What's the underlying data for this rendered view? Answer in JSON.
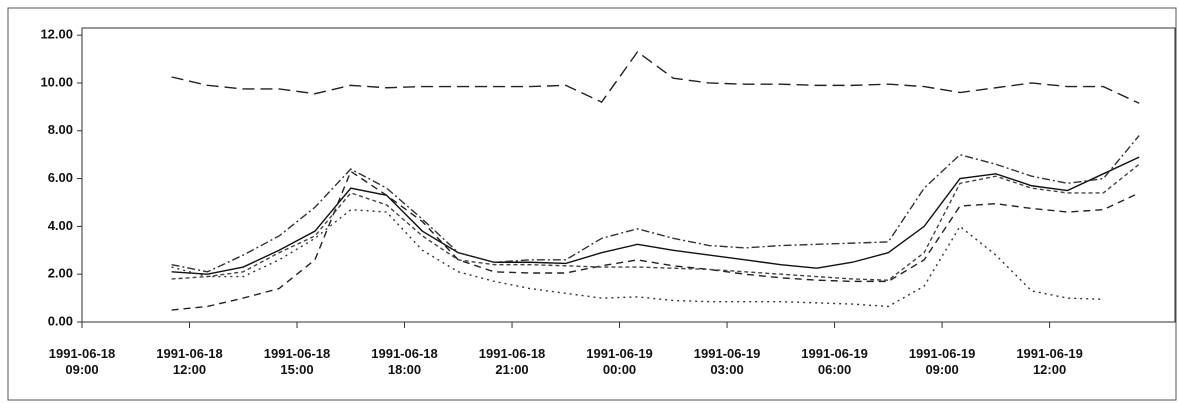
{
  "chart_data": {
    "type": "line",
    "x": [
      11.5,
      12.5,
      13.5,
      14.5,
      15.5,
      16.5,
      17.5,
      18.5,
      19.5,
      20.5,
      21.5,
      22.5,
      23.5,
      24.5,
      25.5,
      26.5,
      27.5,
      28.5,
      29.5,
      30.5,
      31.5,
      32.5,
      33.5,
      34.5,
      35.5,
      36.5,
      37.5,
      38.5
    ],
    "xlim": [
      9,
      39.5
    ],
    "xticks": [
      {
        "value": 9,
        "label": "1991-06-18 09:00"
      },
      {
        "value": 12,
        "label": "1991-06-18 12:00"
      },
      {
        "value": 15,
        "label": "1991-06-18 15:00"
      },
      {
        "value": 18,
        "label": "1991-06-18 18:00"
      },
      {
        "value": 21,
        "label": "1991-06-18 21:00"
      },
      {
        "value": 24,
        "label": "1991-06-19 00:00"
      },
      {
        "value": 27,
        "label": "1991-06-19 03:00"
      },
      {
        "value": 30,
        "label": "1991-06-19 06:00"
      },
      {
        "value": 33,
        "label": "1991-06-19 09:00"
      },
      {
        "value": 36,
        "label": "1991-06-19 12:00"
      }
    ],
    "ylim": [
      0,
      12.3
    ],
    "yticks": [
      {
        "value": 0,
        "label": "0.00"
      },
      {
        "value": 2,
        "label": "2.00"
      },
      {
        "value": 4,
        "label": "4.00"
      },
      {
        "value": 6,
        "label": "6.00"
      },
      {
        "value": 8,
        "label": "8.00"
      },
      {
        "value": 10,
        "label": "10.00"
      },
      {
        "value": 12,
        "label": "12.00"
      }
    ],
    "series": [
      {
        "color": "#222",
        "dash": "12,6",
        "values": [
          10.25,
          9.9,
          9.75,
          9.75,
          9.55,
          9.9,
          9.8,
          9.85,
          9.85,
          9.85,
          9.85,
          9.9,
          9.2,
          11.3,
          10.2,
          10.0,
          9.95,
          9.95,
          9.9,
          9.9,
          9.95,
          9.85,
          9.6,
          9.8,
          10.0,
          9.85,
          9.85,
          9.15
        ]
      },
      {
        "color": "#111",
        "dash": "",
        "values": [
          2.1,
          2.0,
          2.3,
          3.0,
          3.8,
          5.6,
          5.3,
          3.8,
          2.9,
          2.5,
          2.5,
          2.45,
          2.9,
          3.25,
          3.0,
          2.8,
          2.6,
          2.4,
          2.25,
          2.5,
          2.9,
          4.0,
          6.0,
          6.2,
          5.7,
          5.5,
          6.2,
          6.9
        ]
      },
      {
        "color": "#333",
        "dash": "2,4",
        "values": [
          2.3,
          1.9,
          1.9,
          2.6,
          3.5,
          4.7,
          4.6,
          3.0,
          2.1,
          1.7,
          1.4,
          1.2,
          1.0,
          1.05,
          0.9,
          0.85,
          0.85,
          0.85,
          0.8,
          0.75,
          0.65,
          1.5,
          4.0,
          2.8,
          1.3,
          1.0,
          0.95,
          null
        ]
      },
      {
        "color": "#222",
        "dash": "7,5",
        "values": [
          0.5,
          0.65,
          1.0,
          1.4,
          2.6,
          6.3,
          5.3,
          4.2,
          2.6,
          2.1,
          2.05,
          2.05,
          2.35,
          2.6,
          2.35,
          2.2,
          2.0,
          1.85,
          1.75,
          1.7,
          1.7,
          2.6,
          4.85,
          4.95,
          4.75,
          4.6,
          4.7,
          5.4
        ]
      },
      {
        "color": "#333",
        "dash": "8,3,2,3",
        "values": [
          2.4,
          2.1,
          2.8,
          3.6,
          4.8,
          6.4,
          5.6,
          4.3,
          2.9,
          2.5,
          2.6,
          2.6,
          3.5,
          3.9,
          3.5,
          3.2,
          3.1,
          3.2,
          3.25,
          3.3,
          3.35,
          5.6,
          7.0,
          6.6,
          6.1,
          5.8,
          6.0,
          7.8
        ]
      },
      {
        "color": "#444",
        "dash": "4,3",
        "values": [
          1.8,
          1.9,
          2.1,
          2.9,
          3.6,
          5.4,
          4.9,
          3.6,
          2.6,
          2.4,
          2.4,
          2.35,
          2.3,
          2.3,
          2.25,
          2.2,
          2.1,
          2.0,
          1.9,
          1.8,
          1.75,
          2.9,
          5.8,
          6.1,
          5.6,
          5.4,
          5.4,
          6.6
        ]
      }
    ]
  }
}
